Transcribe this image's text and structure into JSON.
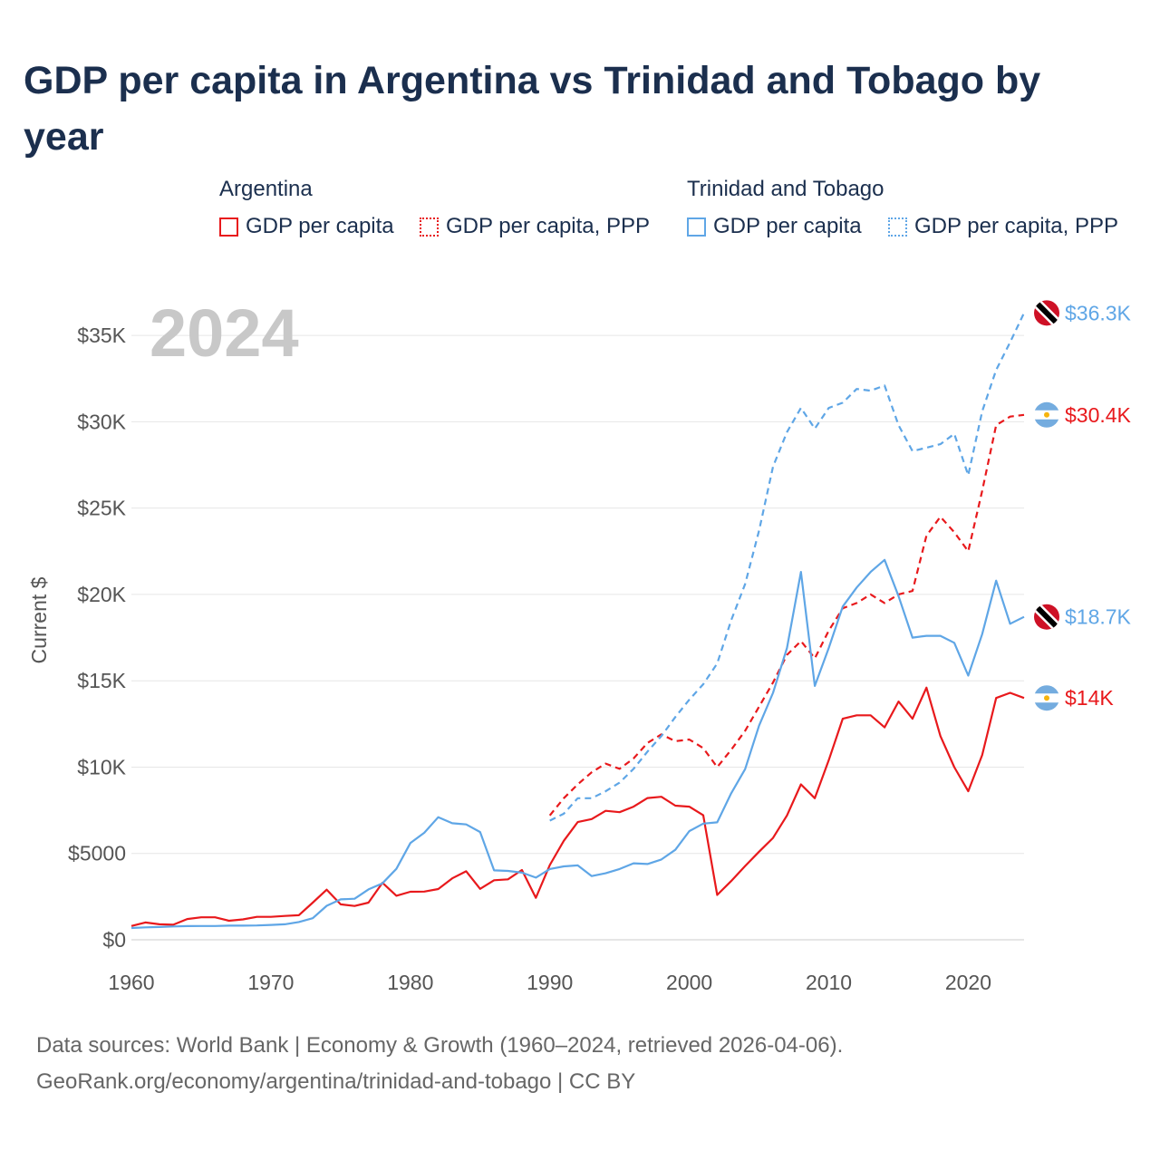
{
  "title": "GDP per capita in Argentina vs Trinidad and Tobago by year",
  "legend": {
    "groups": [
      {
        "title": "Argentina",
        "items": [
          "GDP per capita",
          "GDP per capita, PPP"
        ]
      },
      {
        "title": "Trinidad and Tobago",
        "items": [
          "GDP per capita",
          "GDP per capita, PPP"
        ]
      }
    ]
  },
  "footer": {
    "line1": "Data sources: World Bank | Economy & Growth (1960–2024, retrieved 2026-04-06).",
    "line2": "GeoRank.org/economy/argentina/trinidad-and-tobago | CC BY"
  },
  "colors": {
    "argentina": "#e8191c",
    "trinidad": "#5fa6e6",
    "grid": "#e6e6e6"
  },
  "chart_data": {
    "type": "line",
    "title": "GDP per capita in Argentina vs Trinidad and Tobago by year",
    "year_watermark": "2024",
    "ylabel": "Current $",
    "xlabel": "",
    "xlim": [
      1960,
      2024
    ],
    "ylim": [
      0,
      37000
    ],
    "xticks": [
      1960,
      1970,
      1980,
      1990,
      2000,
      2010,
      2020
    ],
    "yticks": [
      0,
      5000,
      10000,
      15000,
      20000,
      25000,
      30000,
      35000
    ],
    "ytick_labels": [
      "$0",
      "$5000",
      "$10K",
      "$15K",
      "$20K",
      "$25K",
      "$30K",
      "$35K"
    ],
    "grid": true,
    "series": [
      {
        "name": "Argentina GDP per capita",
        "country": "argentina",
        "style": "solid",
        "end_label": "$14K",
        "x": [
          1960,
          1961,
          1962,
          1963,
          1964,
          1965,
          1966,
          1967,
          1968,
          1969,
          1970,
          1971,
          1972,
          1973,
          1974,
          1975,
          1976,
          1977,
          1978,
          1979,
          1980,
          1981,
          1982,
          1983,
          1984,
          1985,
          1986,
          1987,
          1988,
          1989,
          1990,
          1991,
          1992,
          1993,
          1994,
          1995,
          1996,
          1997,
          1998,
          1999,
          2000,
          2001,
          2002,
          2003,
          2004,
          2005,
          2006,
          2007,
          2008,
          2009,
          2010,
          2011,
          2012,
          2013,
          2014,
          2015,
          2016,
          2017,
          2018,
          2019,
          2020,
          2021,
          2022,
          2023,
          2024
        ],
        "values": [
          800,
          1000,
          900,
          870,
          1200,
          1300,
          1300,
          1100,
          1180,
          1330,
          1330,
          1380,
          1420,
          2150,
          2900,
          2050,
          1960,
          2150,
          3300,
          2550,
          2780,
          2790,
          2940,
          3560,
          3970,
          2950,
          3450,
          3500,
          4040,
          2430,
          4330,
          5730,
          6820,
          6990,
          7470,
          7390,
          7710,
          8210,
          8280,
          7770,
          7710,
          7210,
          2600,
          3400,
          4270,
          5100,
          5900,
          7200,
          9000,
          8200,
          10400,
          12800,
          13000,
          13000,
          12300,
          13800,
          12800,
          14600,
          11800,
          10000,
          8600,
          10700,
          14000,
          14300,
          14000
        ]
      },
      {
        "name": "Argentina GDP per capita, PPP",
        "country": "argentina",
        "style": "dashed",
        "end_label": "$30.4K",
        "x": [
          1990,
          1991,
          1992,
          1993,
          1994,
          1995,
          1996,
          1997,
          1998,
          1999,
          2000,
          2001,
          2002,
          2003,
          2004,
          2005,
          2006,
          2007,
          2008,
          2009,
          2010,
          2011,
          2012,
          2013,
          2014,
          2015,
          2016,
          2017,
          2018,
          2019,
          2020,
          2021,
          2022,
          2023,
          2024
        ],
        "values": [
          7200,
          8200,
          9000,
          9700,
          10200,
          9900,
          10500,
          11400,
          11900,
          11500,
          11600,
          11100,
          10000,
          11000,
          12100,
          13500,
          14900,
          16500,
          17300,
          16300,
          17900,
          19200,
          19500,
          20000,
          19500,
          20000,
          20200,
          23400,
          24500,
          23600,
          22500,
          26000,
          29800,
          30300,
          30400
        ]
      },
      {
        "name": "Trinidad and Tobago GDP per capita",
        "country": "trinidad",
        "style": "solid",
        "end_label": "$18.7K",
        "x": [
          1960,
          1961,
          1962,
          1963,
          1964,
          1965,
          1966,
          1967,
          1968,
          1969,
          1970,
          1971,
          1972,
          1973,
          1974,
          1975,
          1976,
          1977,
          1978,
          1979,
          1980,
          1981,
          1982,
          1983,
          1984,
          1985,
          1986,
          1987,
          1988,
          1989,
          1990,
          1991,
          1992,
          1993,
          1994,
          1995,
          1996,
          1997,
          1998,
          1999,
          2000,
          2001,
          2002,
          2003,
          2004,
          2005,
          2006,
          2007,
          2008,
          2009,
          2010,
          2011,
          2012,
          2013,
          2014,
          2015,
          2016,
          2017,
          2018,
          2019,
          2020,
          2021,
          2022,
          2023,
          2024
        ],
        "values": [
          680,
          720,
          740,
          770,
          790,
          800,
          800,
          820,
          820,
          830,
          860,
          900,
          1030,
          1250,
          1970,
          2340,
          2380,
          2920,
          3270,
          4110,
          5600,
          6200,
          7100,
          6750,
          6680,
          6240,
          4020,
          3990,
          3890,
          3600,
          4100,
          4250,
          4310,
          3690,
          3850,
          4100,
          4430,
          4390,
          4650,
          5210,
          6290,
          6730,
          6800,
          8480,
          9880,
          12400,
          14300,
          16900,
          21300,
          14700,
          16900,
          19300,
          20400,
          21300,
          22000,
          19900,
          17500,
          17600,
          17600,
          17200,
          15300,
          17700,
          20800,
          18300,
          18700
        ]
      },
      {
        "name": "Trinidad and Tobago GDP per capita, PPP",
        "country": "trinidad",
        "style": "dashed",
        "end_label": "$36.3K",
        "x": [
          1990,
          1991,
          1992,
          1993,
          1994,
          1995,
          1996,
          1997,
          1998,
          1999,
          2000,
          2001,
          2002,
          2003,
          2004,
          2005,
          2006,
          2007,
          2008,
          2009,
          2010,
          2011,
          2012,
          2013,
          2014,
          2015,
          2016,
          2017,
          2018,
          2019,
          2020,
          2021,
          2022,
          2023,
          2024
        ],
        "values": [
          6900,
          7300,
          8200,
          8200,
          8600,
          9100,
          9900,
          10900,
          11800,
          12900,
          13900,
          14800,
          16000,
          18500,
          20600,
          23700,
          27400,
          29400,
          30800,
          29600,
          30800,
          31100,
          31900,
          31800,
          32100,
          29800,
          28300,
          28500,
          28700,
          29300,
          26900,
          30600,
          33000,
          34600,
          36300
        ]
      }
    ]
  }
}
